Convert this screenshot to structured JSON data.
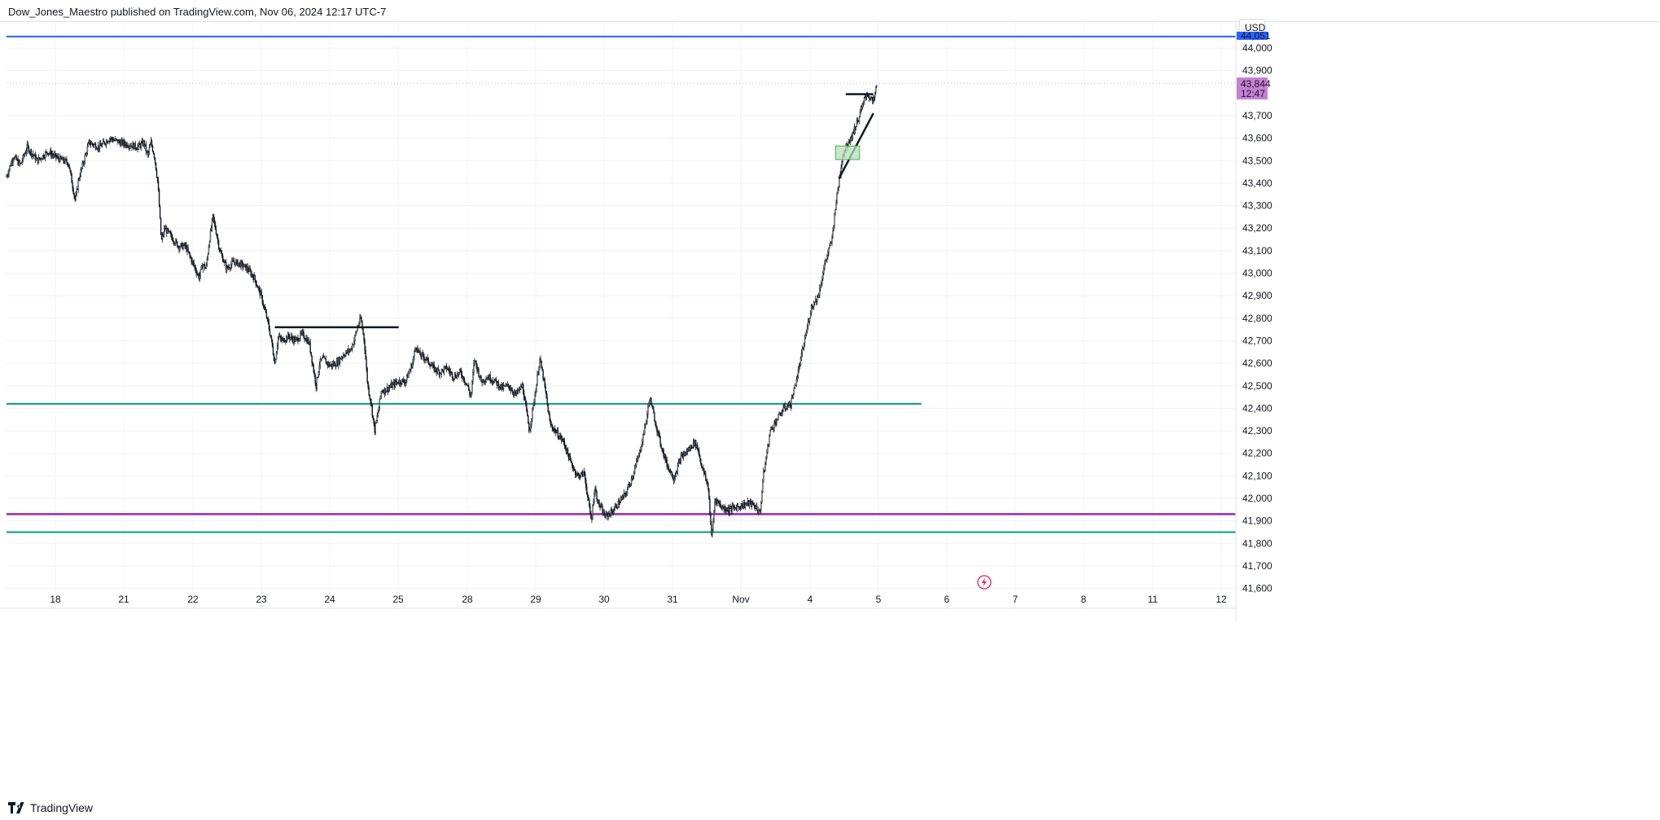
{
  "header": {
    "published_text": "Dow_Jones_Maestro published on TradingView.com, Nov 06, 2024 12:17 UTC-7"
  },
  "footer": {
    "brand": "TradingView",
    "logo_icon": "tradingview-logo-icon"
  },
  "colors": {
    "candle": "#131722",
    "grid": "#f0f3fa",
    "blue_line": "#2962ff",
    "teal_line": "#089981",
    "purple_line": "#9c27b0",
    "price_tag_bg": "#c77fd4",
    "demand_box_fill": "#b7dfb9",
    "demand_box_border": "#4caf50",
    "lightning_icon": "#e91e63"
  },
  "chart_data": {
    "type": "candlestick",
    "title": "",
    "currency": "USD",
    "y_range": [
      41580,
      44080
    ],
    "y_ticks": [
      "44,000",
      "43,900",
      "43,700",
      "43,600",
      "43,500",
      "43,400",
      "43,300",
      "43,200",
      "43,100",
      "43,000",
      "42,900",
      "42,800",
      "42,700",
      "42,600",
      "42,500",
      "42,400",
      "42,300",
      "42,200",
      "42,100",
      "42,000",
      "41,900",
      "41,800",
      "41,700",
      "41,600"
    ],
    "x_ticks": [
      "18",
      "21",
      "22",
      "23",
      "24",
      "25",
      "28",
      "29",
      "30",
      "31",
      "Nov",
      "4",
      "5",
      "6",
      "7",
      "8",
      "11",
      "12"
    ],
    "last_price": {
      "value": "43,844",
      "countdown": "12:47"
    },
    "blue_line_tag": "44,051",
    "series": [
      {
        "close_path": [
          [
            0,
            43430
          ],
          [
            0.1,
            43520
          ],
          [
            0.2,
            43480
          ],
          [
            0.3,
            43560
          ],
          [
            0.45,
            43500
          ],
          [
            0.6,
            43540
          ],
          [
            0.75,
            43510
          ],
          [
            0.9,
            43490
          ],
          [
            1.0,
            43320
          ],
          [
            1.05,
            43420
          ],
          [
            1.2,
            43580
          ],
          [
            1.35,
            43560
          ],
          [
            1.5,
            43600
          ],
          [
            1.65,
            43580
          ],
          [
            1.8,
            43570
          ],
          [
            1.9,
            43560
          ],
          [
            2.0,
            43580
          ],
          [
            2.05,
            43520
          ],
          [
            2.1,
            43580
          ],
          [
            2.15,
            43520
          ],
          [
            2.2,
            43400
          ],
          [
            2.25,
            43140
          ],
          [
            2.3,
            43200
          ],
          [
            2.4,
            43160
          ],
          [
            2.5,
            43120
          ],
          [
            2.6,
            43120
          ],
          [
            2.7,
            43050
          ],
          [
            2.8,
            42980
          ],
          [
            2.85,
            43040
          ],
          [
            2.9,
            43020
          ],
          [
            2.95,
            43150
          ],
          [
            3.0,
            43250
          ],
          [
            3.05,
            43180
          ],
          [
            3.1,
            43100
          ],
          [
            3.2,
            43020
          ],
          [
            3.3,
            43050
          ],
          [
            3.4,
            43040
          ],
          [
            3.5,
            43020
          ],
          [
            3.6,
            42980
          ],
          [
            3.7,
            42900
          ],
          [
            3.8,
            42780
          ],
          [
            3.85,
            42700
          ],
          [
            3.9,
            42600
          ],
          [
            3.95,
            42720
          ],
          [
            4.0,
            42700
          ],
          [
            4.1,
            42720
          ],
          [
            4.2,
            42700
          ],
          [
            4.3,
            42730
          ],
          [
            4.4,
            42690
          ],
          [
            4.5,
            42500
          ],
          [
            4.55,
            42600
          ],
          [
            4.6,
            42620
          ],
          [
            4.7,
            42590
          ],
          [
            4.8,
            42600
          ],
          [
            4.9,
            42640
          ],
          [
            5.0,
            42660
          ],
          [
            5.05,
            42700
          ],
          [
            5.1,
            42760
          ],
          [
            5.15,
            42800
          ],
          [
            5.2,
            42700
          ],
          [
            5.25,
            42500
          ],
          [
            5.3,
            42420
          ],
          [
            5.35,
            42300
          ],
          [
            5.4,
            42380
          ],
          [
            5.45,
            42480
          ],
          [
            5.5,
            42480
          ],
          [
            5.6,
            42500
          ],
          [
            5.7,
            42520
          ],
          [
            5.8,
            42520
          ],
          [
            5.9,
            42600
          ],
          [
            5.95,
            42680
          ],
          [
            6.0,
            42640
          ],
          [
            6.1,
            42620
          ],
          [
            6.2,
            42580
          ],
          [
            6.3,
            42560
          ],
          [
            6.4,
            42580
          ],
          [
            6.5,
            42540
          ],
          [
            6.6,
            42560
          ],
          [
            6.7,
            42500
          ],
          [
            6.75,
            42450
          ],
          [
            6.8,
            42620
          ],
          [
            6.9,
            42520
          ],
          [
            7.0,
            42540
          ],
          [
            7.1,
            42520
          ],
          [
            7.2,
            42490
          ],
          [
            7.3,
            42500
          ],
          [
            7.4,
            42460
          ],
          [
            7.5,
            42500
          ],
          [
            7.6,
            42300
          ],
          [
            7.65,
            42400
          ],
          [
            7.7,
            42500
          ],
          [
            7.75,
            42620
          ],
          [
            7.8,
            42540
          ],
          [
            7.85,
            42440
          ],
          [
            7.9,
            42330
          ],
          [
            8.0,
            42290
          ],
          [
            8.1,
            42250
          ],
          [
            8.2,
            42160
          ],
          [
            8.3,
            42100
          ],
          [
            8.4,
            42110
          ],
          [
            8.45,
            42000
          ],
          [
            8.5,
            41900
          ],
          [
            8.55,
            42050
          ],
          [
            8.6,
            41980
          ],
          [
            8.7,
            41920
          ],
          [
            8.8,
            41940
          ],
          [
            8.9,
            41980
          ],
          [
            9.0,
            42020
          ],
          [
            9.1,
            42100
          ],
          [
            9.2,
            42200
          ],
          [
            9.3,
            42350
          ],
          [
            9.35,
            42450
          ],
          [
            9.4,
            42380
          ],
          [
            9.5,
            42250
          ],
          [
            9.6,
            42150
          ],
          [
            9.7,
            42090
          ],
          [
            9.8,
            42180
          ],
          [
            9.9,
            42210
          ],
          [
            10.0,
            42250
          ],
          [
            10.05,
            42220
          ],
          [
            10.1,
            42150
          ],
          [
            10.2,
            42050
          ],
          [
            10.25,
            41820
          ],
          [
            10.3,
            42000
          ],
          [
            10.4,
            41960
          ],
          [
            10.5,
            41950
          ],
          [
            10.6,
            41960
          ],
          [
            10.7,
            41970
          ],
          [
            10.8,
            41980
          ],
          [
            10.9,
            41960
          ],
          [
            10.95,
            41930
          ],
          [
            11.0,
            42100
          ],
          [
            11.05,
            42200
          ],
          [
            11.1,
            42300
          ],
          [
            11.2,
            42350
          ],
          [
            11.3,
            42400
          ],
          [
            11.4,
            42420
          ],
          [
            11.5,
            42550
          ],
          [
            11.6,
            42700
          ],
          [
            11.7,
            42850
          ],
          [
            11.8,
            42900
          ],
          [
            11.9,
            43050
          ],
          [
            12.0,
            43150
          ],
          [
            12.05,
            43300
          ],
          [
            12.1,
            43400
          ],
          [
            12.15,
            43520
          ],
          [
            12.2,
            43560
          ],
          [
            12.3,
            43620
          ],
          [
            12.4,
            43700
          ],
          [
            12.5,
            43800
          ],
          [
            12.6,
            43760
          ],
          [
            12.65,
            43840
          ]
        ]
      }
    ],
    "horizontal_levels": [
      {
        "name": "blue-level",
        "value": 44051,
        "color": "#2962ff",
        "from": 0,
        "to": "end"
      },
      {
        "name": "teal-level-upper",
        "value": 42420,
        "color": "#089981",
        "from": 0,
        "to": 13.3
      },
      {
        "name": "purple-level",
        "value": 41930,
        "color": "#9c27b0",
        "from": 0,
        "to": "end"
      },
      {
        "name": "teal-level-lower",
        "value": 41850,
        "color": "#089981",
        "from": 0,
        "to": "end"
      }
    ],
    "drawings": [
      {
        "name": "resistance-segment",
        "type": "segment",
        "from": [
          3.9,
          42760
        ],
        "to": [
          5.7,
          42760
        ]
      },
      {
        "name": "breakout-segment",
        "type": "segment",
        "from": [
          12.2,
          43795
        ],
        "to": [
          12.6,
          43795
        ]
      },
      {
        "name": "trend-line",
        "type": "segment",
        "from": [
          12.1,
          43420
        ],
        "to": [
          12.6,
          43710
        ]
      },
      {
        "name": "demand-box",
        "type": "box",
        "from": [
          12.05,
          43505
        ],
        "to": [
          12.4,
          43565
        ]
      }
    ]
  }
}
